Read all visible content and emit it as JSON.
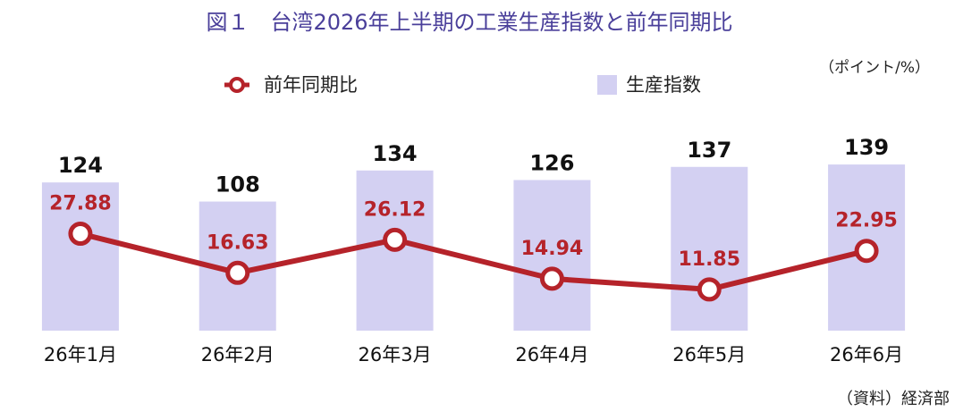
{
  "chart_data": {
    "type": "bar-line",
    "title": "図１　台湾2026年上半期の工業生産指数と前年同期比",
    "unit_note": "（ポイント/%）",
    "source": "（資料）経済部",
    "categories": [
      "26年1月",
      "26年2月",
      "26年3月",
      "26年4月",
      "26年5月",
      "26年6月"
    ],
    "series": [
      {
        "name": "生産指数",
        "type": "bar",
        "color": "#d3d0f2",
        "values": [
          124,
          108,
          134,
          126,
          137,
          139
        ]
      },
      {
        "name": "前年同期比",
        "type": "line",
        "axis": "y2",
        "color": "#b5232a",
        "values": [
          27.88,
          16.63,
          26.12,
          14.94,
          11.85,
          22.95
        ]
      }
    ],
    "ylim": [
      0,
      160
    ],
    "y2lim": [
      0,
      55
    ],
    "grid": false
  }
}
